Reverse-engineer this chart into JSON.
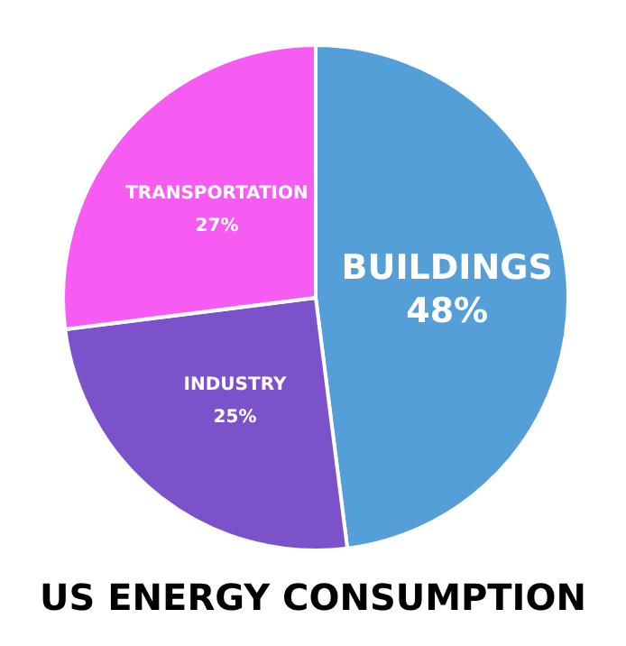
{
  "chart_data": {
    "type": "pie",
    "title": "US ENERGY CONSUMPTION",
    "categories": [
      "BUILDINGS",
      "INDUSTRY",
      "TRANSPORTATION"
    ],
    "values": [
      48,
      25,
      27
    ],
    "colors": [
      "#559fd9",
      "#7b52c9",
      "#f75cf2"
    ],
    "value_labels": [
      "48%",
      "25%",
      "27%"
    ],
    "legend": false
  }
}
